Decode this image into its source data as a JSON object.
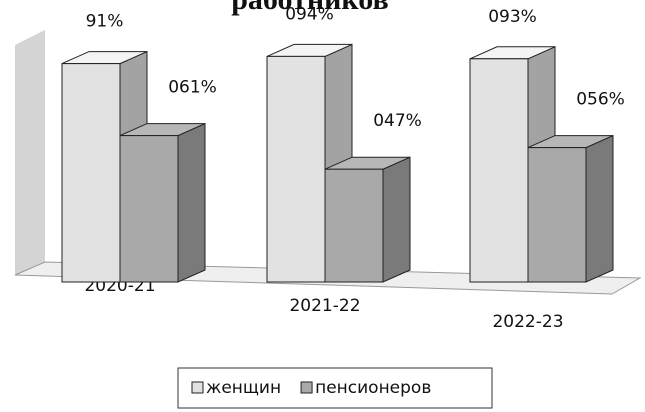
{
  "chart_data": {
    "type": "bar3d",
    "title": "работников",
    "categories": [
      "2020-21",
      "2021-22",
      "2022-23"
    ],
    "series": [
      {
        "name": "женщин",
        "color": "#e2e2e2",
        "values": [
          91,
          94,
          93
        ],
        "value_labels": [
          "91%",
          "094%",
          "093%"
        ]
      },
      {
        "name": "пенсионеров",
        "color": "#a9a9a9",
        "values": [
          61,
          47,
          56
        ],
        "value_labels": [
          "061%",
          "047%",
          "056%"
        ]
      }
    ]
  }
}
